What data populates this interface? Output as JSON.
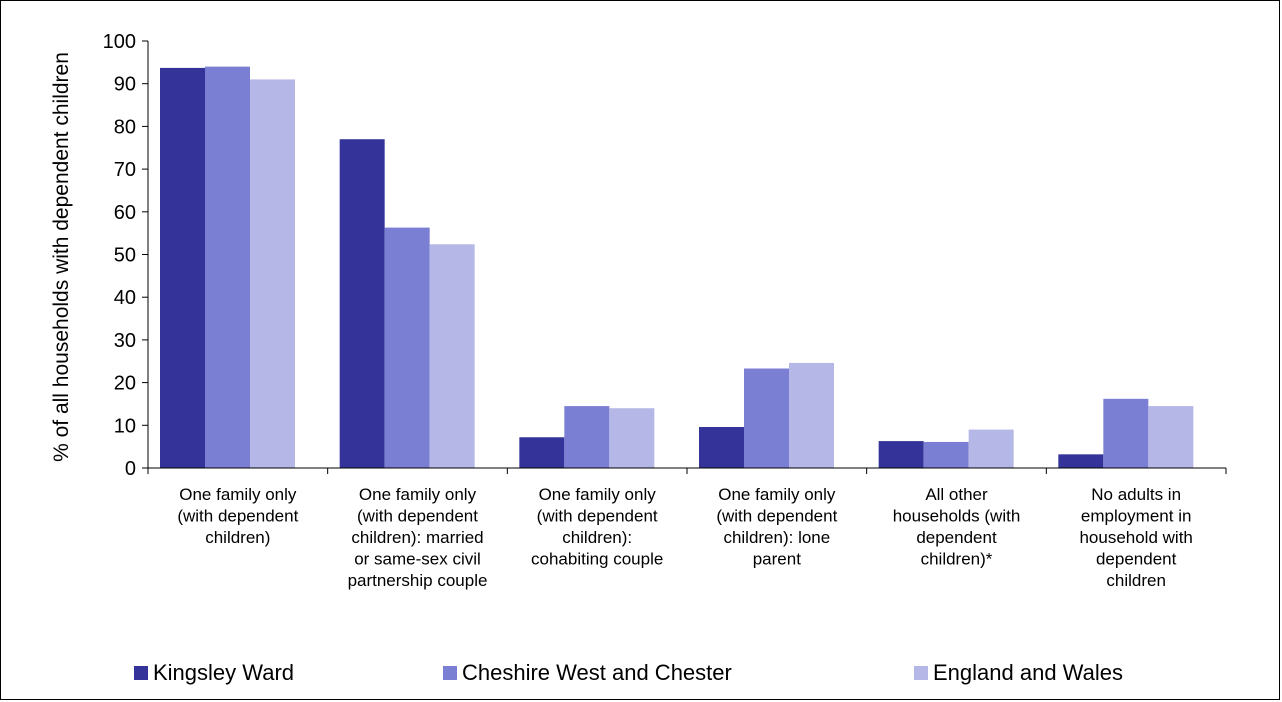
{
  "chart_data": {
    "type": "bar",
    "title": "",
    "xlabel": "",
    "ylabel": "% of all households with dependent children",
    "ylim": [
      0,
      100
    ],
    "ytick_step": 10,
    "grid": false,
    "legend_position": "bottom",
    "categories": [
      "One family only (with dependent children)",
      "One family only (with dependent children): married or same-sex civil partnership couple",
      "One family only (with dependent children): cohabiting couple",
      "One family only (with dependent children): lone parent",
      "All other households (with dependent children)*",
      "No adults in employment in household with dependent children"
    ],
    "category_lines": [
      [
        "One family only",
        "(with dependent",
        "children)"
      ],
      [
        "One family only",
        "(with dependent",
        "children): married",
        "or same-sex civil",
        "partnership couple"
      ],
      [
        "One family only",
        "(with dependent",
        "children):",
        "cohabiting couple"
      ],
      [
        "One family only",
        "(with dependent",
        "children): lone",
        "parent"
      ],
      [
        "All other",
        "households (with",
        "dependent",
        "children)*"
      ],
      [
        "No adults in",
        "employment in",
        "household with",
        "dependent",
        "children"
      ]
    ],
    "series": [
      {
        "name": "Kingsley Ward",
        "color": "#333399",
        "values": [
          93.7,
          77.0,
          7.2,
          9.6,
          6.3,
          3.2
        ]
      },
      {
        "name": "Cheshire West and Chester",
        "color": "#7b7fd4",
        "values": [
          94.0,
          56.3,
          14.5,
          23.3,
          6.1,
          16.2
        ]
      },
      {
        "name": "England and Wales",
        "color": "#b5b7e6",
        "values": [
          91.0,
          52.4,
          14.0,
          24.6,
          9.0,
          14.5
        ]
      }
    ]
  }
}
